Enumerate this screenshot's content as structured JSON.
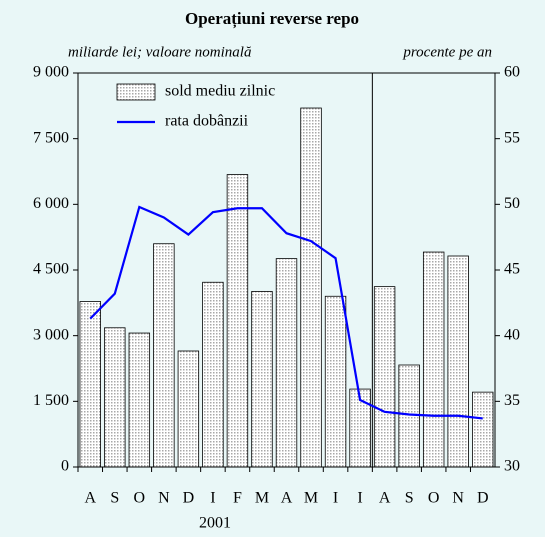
{
  "chart_data": {
    "type": "bar-line",
    "title": "Operațiuni reverse repo",
    "y_label": "miliarde lei; valoare nominală",
    "y2_label": "procente pe an",
    "x_group_label": "2001",
    "categories": [
      "A",
      "S",
      "O",
      "N",
      "D",
      "I",
      "F",
      "M",
      "A",
      "M",
      "I",
      "I",
      "A",
      "S",
      "O",
      "N",
      "D"
    ],
    "series": [
      {
        "name": "sold mediu zilnic",
        "type": "bar",
        "color": "#a8a8a8",
        "values": [
          3780,
          3180,
          3060,
          5100,
          2650,
          4220,
          6680,
          4010,
          4760,
          8200,
          3900,
          1780,
          4120,
          2330,
          4910,
          4820,
          1710
        ]
      },
      {
        "name": "rata dobânzii",
        "type": "line",
        "axis": "y2",
        "color": "#0000ff",
        "values": [
          41.3,
          43.2,
          49.8,
          49.0,
          47.7,
          49.4,
          49.7,
          49.7,
          47.8,
          47.2,
          45.9,
          35.1,
          34.2,
          34.0,
          33.9,
          33.9,
          33.7
        ]
      }
    ],
    "ylim": [
      0,
      9000
    ],
    "yticks": [
      0,
      {
        "value": 1500,
        "label": "1 500"
      },
      {
        "value": 3000,
        "label": "3 000"
      },
      {
        "value": 4500,
        "label": "4 500"
      },
      {
        "value": 6000,
        "label": "6 000"
      },
      {
        "value": 7500,
        "label": "7 500"
      },
      {
        "value": 9000,
        "label": "9 000"
      }
    ],
    "y2lim": [
      30,
      60
    ],
    "y2ticks": [
      30,
      35,
      40,
      45,
      50,
      55,
      60
    ],
    "legend": "upper left"
  }
}
